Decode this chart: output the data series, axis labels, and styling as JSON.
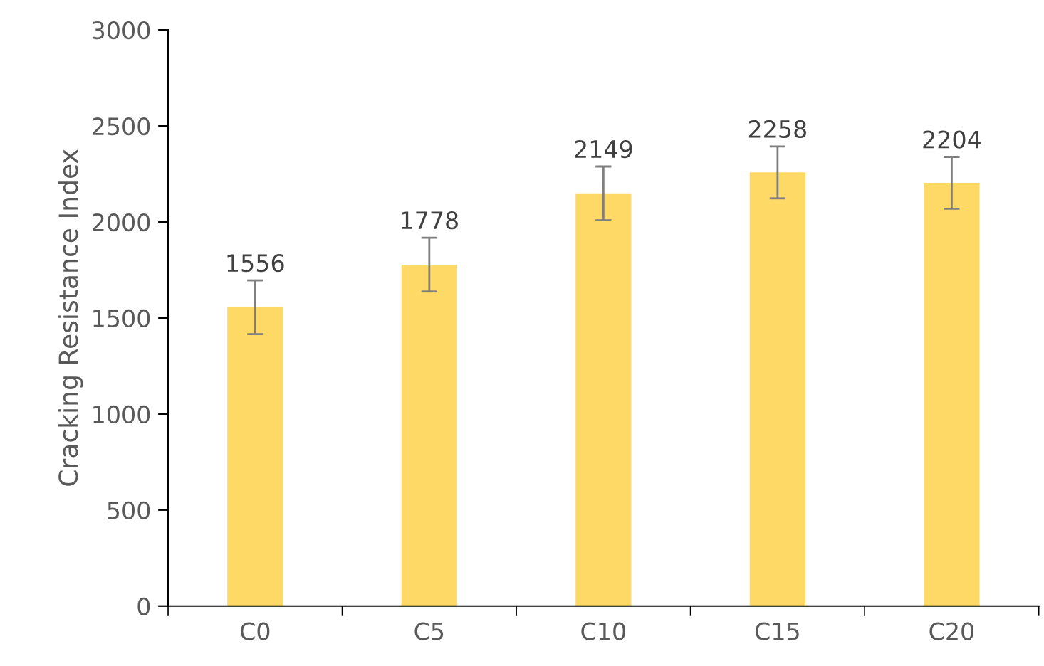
{
  "chart_data": {
    "type": "bar",
    "ylabel": "Cracking Resistance Index",
    "categories": [
      "C0",
      "C5",
      "C10",
      "C15",
      "C20"
    ],
    "values": [
      1556,
      1778,
      2149,
      2258,
      2204
    ],
    "errors": [
      140,
      140,
      140,
      135,
      135
    ],
    "color": "#ffd966",
    "ylim": [
      0,
      3000
    ],
    "yticks": [
      0,
      500,
      1000,
      1500,
      2000,
      2500,
      3000
    ],
    "grid": false,
    "data_labels": true
  }
}
